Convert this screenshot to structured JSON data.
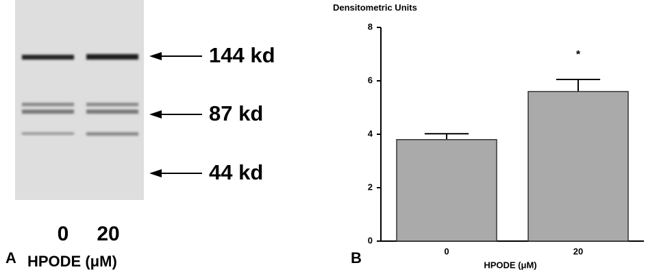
{
  "blot": {
    "panel_label": "A",
    "markers": [
      "144 kd",
      "87 kd",
      "44 kd"
    ],
    "lanes": [
      "0",
      "20"
    ],
    "xlabel": "HPODE (μM)"
  },
  "chart_data": {
    "type": "bar",
    "panel_label": "B",
    "y_axis_title": "Densitometric Units",
    "x_axis_title": "HPODE (μM)",
    "categories": [
      "0",
      "20"
    ],
    "values": [
      3.8,
      5.6
    ],
    "errors": [
      0.22,
      0.45
    ],
    "annotation": "*",
    "color": "#aaaaaa",
    "ylim": [
      0,
      8
    ],
    "yticks": [
      0,
      2,
      4,
      6,
      8
    ]
  }
}
